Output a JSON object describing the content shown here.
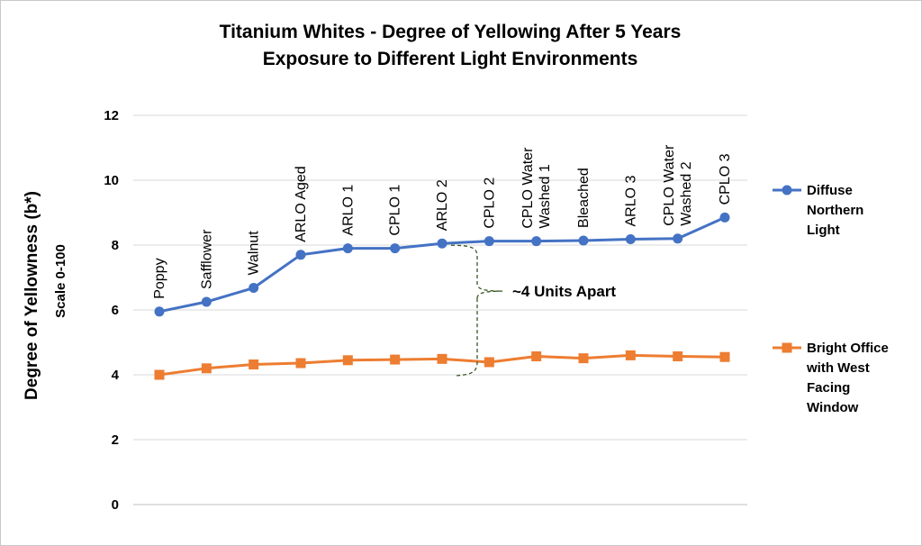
{
  "chart_data": {
    "type": "line",
    "title": [
      "Titanium Whites - Degree of Yellowing After 5 Years",
      "Exposure to Different Light Environments"
    ],
    "ylabel": "Degree  of  Yellowness (b*)",
    "ylabel2": "Scale 0-100",
    "xlabel": "",
    "ylim": [
      0,
      12
    ],
    "yticks": [
      0,
      2,
      4,
      6,
      8,
      10,
      12
    ],
    "grid": true,
    "legend": "right",
    "categories": [
      [
        "Poppy"
      ],
      [
        "Safflower"
      ],
      [
        "Walnut"
      ],
      [
        "ARLO Aged"
      ],
      [
        "ARLO 1"
      ],
      [
        "CPLO 1"
      ],
      [
        "ARLO 2"
      ],
      [
        "CPLO 2"
      ],
      [
        "CPLO Water",
        "Washed 1"
      ],
      [
        "Bleached"
      ],
      [
        "ARLO 3"
      ],
      [
        "CPLO Water",
        "Washed 2"
      ],
      [
        "CPLO 3"
      ]
    ],
    "series": [
      {
        "name": [
          "Diffuse",
          "Northern",
          "Light"
        ],
        "color": "#4472C4",
        "marker": "circle",
        "values": [
          5.95,
          6.25,
          6.68,
          7.7,
          7.9,
          7.9,
          8.05,
          8.12,
          8.12,
          8.14,
          8.18,
          8.2,
          8.85
        ]
      },
      {
        "name": [
          "Bright Office",
          "with West",
          "Facing",
          "Window"
        ],
        "color": "#ED7D31",
        "marker": "square",
        "values": [
          4.0,
          4.2,
          4.32,
          4.36,
          4.45,
          4.47,
          4.49,
          4.39,
          4.57,
          4.51,
          4.6,
          4.57,
          4.55
        ]
      }
    ],
    "annotation": {
      "text": "~4 Units Apart",
      "from_index": 6,
      "upper": 8.05,
      "lower": 4.0,
      "color": "#375623"
    }
  }
}
